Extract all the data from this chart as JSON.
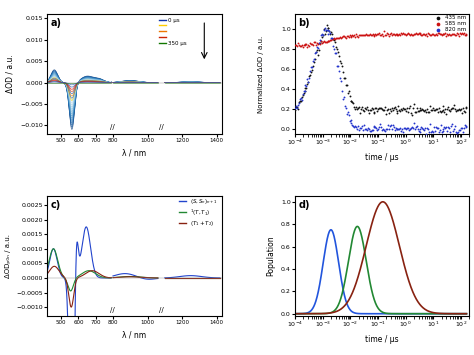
{
  "panel_a": {
    "label": "a)",
    "xlabel": "λ / nm",
    "ylabel": "ΔOD / a.u.",
    "ylim": [
      -0.012,
      0.016
    ],
    "n_curves": 22
  },
  "panel_b": {
    "label": "b)",
    "xlabel": "time / μs",
    "ylabel": "Normalized ΔOD / a.u.",
    "ylim": [
      -0.05,
      1.15
    ],
    "legend_labels": [
      "435 nm",
      "585 nm",
      "820 nm"
    ],
    "legend_colors": [
      "#111111",
      "#cc1111",
      "#2233cc"
    ]
  },
  "panel_c": {
    "label": "c)",
    "xlabel": "λ / nm",
    "ylabel": "ΔODₚ₀ₙ / a.u.",
    "ylim": [
      -0.0013,
      0.0028
    ],
    "legend_colors": [
      "#2244cc",
      "#228833",
      "#882211"
    ]
  },
  "panel_d": {
    "label": "d)",
    "xlabel": "time / μs",
    "ylabel": "Population",
    "ylim": [
      -0.02,
      1.05
    ],
    "curve_colors": [
      "#2255dd",
      "#228833",
      "#882211"
    ]
  },
  "figure_bg": "#ffffff"
}
